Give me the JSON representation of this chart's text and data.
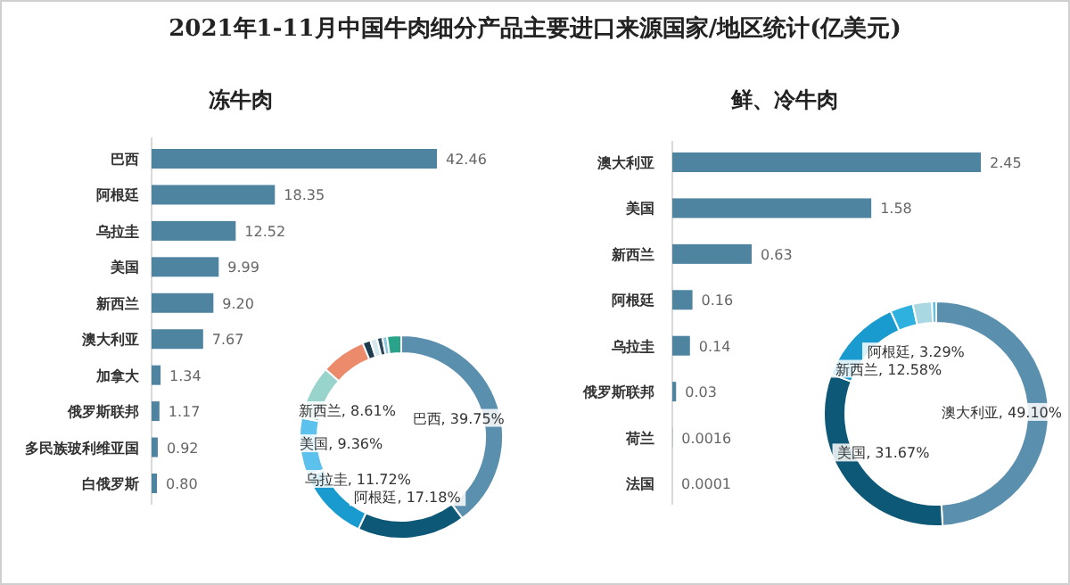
{
  "chart_data": [
    {
      "type": "bar",
      "orientation": "horizontal",
      "title": "2021年1-11月中国牛肉细分产品主要进口来源国家/地区统计(亿美元)",
      "subtitle": "冻牛肉",
      "categories": [
        "巴西",
        "阿根廷",
        "乌拉圭",
        "美国",
        "新西兰",
        "澳大利亚",
        "加拿大",
        "俄罗斯联邦",
        "多民族玻利维亚国",
        "白俄罗斯"
      ],
      "values": [
        42.46,
        18.35,
        12.52,
        9.99,
        9.2,
        7.67,
        1.34,
        1.17,
        0.92,
        0.8
      ],
      "value_labels": [
        "42.46",
        "18.35",
        "12.52",
        "9.99",
        "9.20",
        "7.67",
        "1.34",
        "1.17",
        "0.92",
        "0.80"
      ],
      "color": "#4f84a0"
    },
    {
      "type": "donut",
      "categories": [
        "巴西",
        "阿根廷",
        "乌拉圭",
        "美国",
        "新西兰",
        null,
        null,
        null,
        null,
        null,
        null
      ],
      "values": [
        39.75,
        17.18,
        11.72,
        9.36,
        8.61,
        7.18,
        1.25,
        1.1,
        0.86,
        0.75,
        2.24
      ],
      "value_labels": [
        "39.75%",
        "17.18%",
        "11.72%",
        "9.36%",
        "8.61%",
        null,
        null,
        null,
        null,
        null,
        null
      ],
      "colors": [
        "#5b8fae",
        "#0d5876",
        "#1a9bd0",
        "#5cc1ec",
        "#98d3cc",
        "#ec8a6c",
        "#1d3b4f",
        "#d6e8ef",
        "#2b4a5c",
        "#8cc7df",
        "#2aa38b"
      ]
    },
    {
      "type": "bar",
      "orientation": "horizontal",
      "title": "鲜、冷牛肉",
      "categories": [
        "澳大利亚",
        "美国",
        "新西兰",
        "阿根廷",
        "乌拉圭",
        "俄罗斯联邦",
        "荷兰",
        "法国"
      ],
      "values": [
        2.45,
        1.58,
        0.63,
        0.16,
        0.14,
        0.03,
        0.0016,
        0.0001
      ],
      "value_labels": [
        "2.45",
        "1.58",
        "0.63",
        "0.16",
        "0.14",
        "0.03",
        "0.0016",
        "0.0001"
      ],
      "color": "#4f84a0"
    },
    {
      "type": "donut",
      "categories": [
        "澳大利亚",
        "美国",
        "新西兰",
        "阿根廷",
        null,
        null
      ],
      "values": [
        49.1,
        31.67,
        12.58,
        3.29,
        2.76,
        0.6
      ],
      "value_labels": [
        "49.10%",
        "31.67%",
        "12.58%",
        "3.29%",
        null,
        null
      ],
      "colors": [
        "#5b8fae",
        "#0d5876",
        "#1a9bd0",
        "#2fb1e0",
        "#a9d8e2",
        "#5cc1ec"
      ]
    }
  ]
}
